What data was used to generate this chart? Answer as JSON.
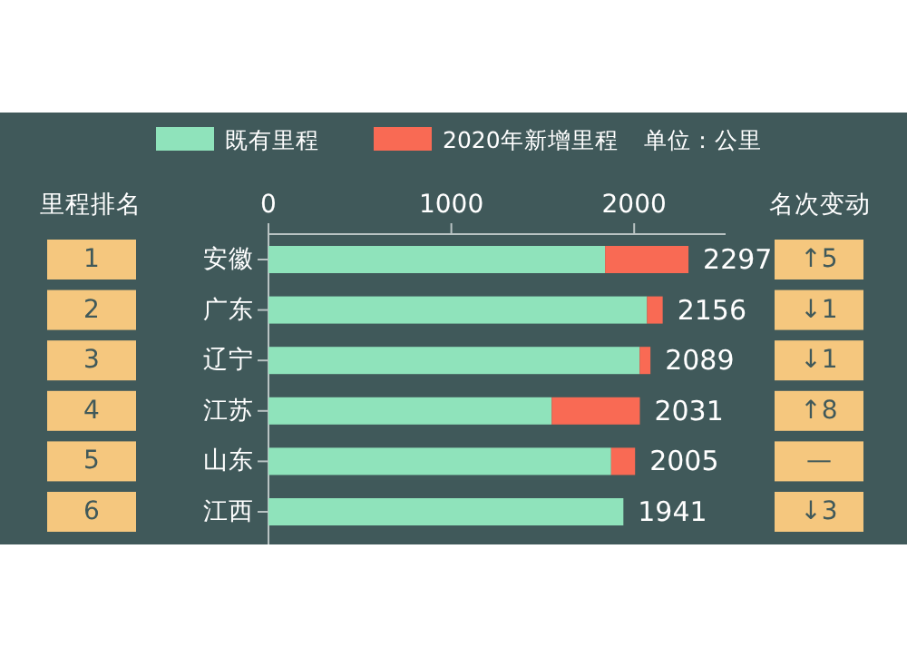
{
  "chart_data": {
    "type": "bar",
    "orientation": "horizontal",
    "stacked": true,
    "categories": [
      "安徽",
      "广东",
      "辽宁",
      "江苏",
      "山东",
      "江西"
    ],
    "series": [
      {
        "name": "既有里程",
        "color": "#8fe3bb",
        "values": [
          1841,
          2070,
          2030,
          1549,
          1874,
          1941
        ]
      },
      {
        "name": "2020年新增里程",
        "color": "#f96a54",
        "values": [
          456,
          86,
          59,
          482,
          131,
          0
        ]
      }
    ],
    "totals": [
      "2297",
      "2156",
      "2089",
      "2031",
      "2005",
      "1941"
    ],
    "xlim": [
      0,
      2500
    ],
    "xticks": [
      0,
      1000,
      2000
    ],
    "legend": "top",
    "grid": false,
    "annotations": [
      "单位：公里",
      "里程排名",
      "名次变动",
      "1",
      "2",
      "3",
      "4",
      "5",
      "6",
      "↑5",
      "↓1",
      "↓1",
      "↑8",
      "—",
      "↓3"
    ]
  }
}
